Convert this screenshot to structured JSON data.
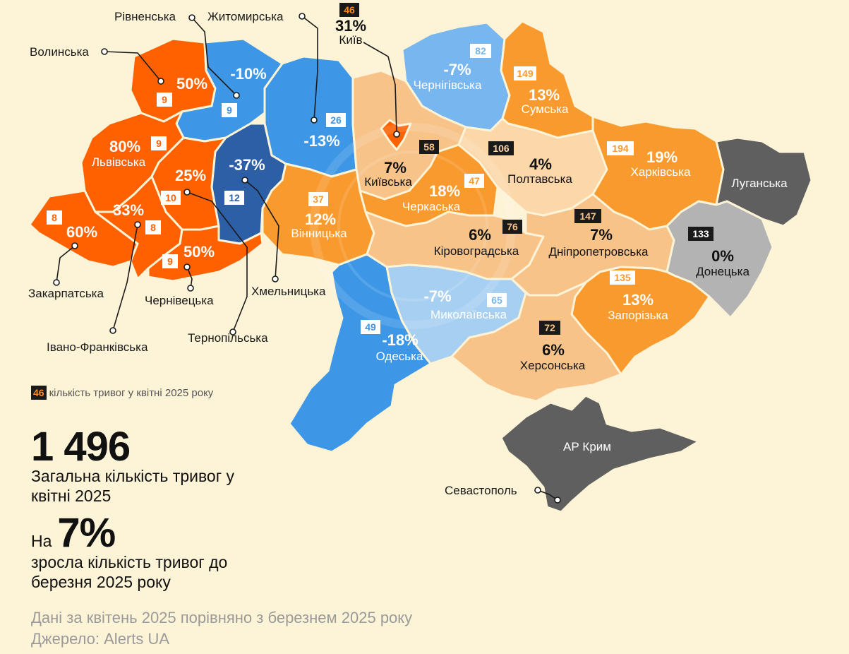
{
  "regions": [
    {
      "id": "volynska",
      "name": "Волинська",
      "change": "50%",
      "count": "9",
      "color": "#ff6000"
    },
    {
      "id": "rivnenska",
      "name": "Рівненська",
      "change": "-10%",
      "count": "9",
      "color": "#3d97e6"
    },
    {
      "id": "zhytomyrska",
      "name": "Житомирська",
      "change": "-13%",
      "count": "26",
      "color": "#3d97e6"
    },
    {
      "id": "kyiv",
      "name": "Київ",
      "change": "31%",
      "count": "46",
      "color": "#ff6000"
    },
    {
      "id": "kyivska",
      "name": "Київська",
      "change": "7%",
      "count": "58",
      "color": "#f8c389"
    },
    {
      "id": "chernihivska",
      "name": "Чернігівська",
      "change": "-7%",
      "count": "82",
      "color": "#78b6f0"
    },
    {
      "id": "sumska",
      "name": "Сумська",
      "change": "13%",
      "count": "149",
      "color": "#f99a2e"
    },
    {
      "id": "lvivska",
      "name": "Львівська",
      "change": "80%",
      "count": "9",
      "color": "#ff6000"
    },
    {
      "id": "ternopilska",
      "name": "Тернопільська",
      "change": "25%",
      "count": "10",
      "color": "#ff6000"
    },
    {
      "id": "khmelnytska",
      "name": "Хмельницька",
      "change": "-37%",
      "count": "12",
      "color": "#2d5fa7"
    },
    {
      "id": "vinnytska",
      "name": "Вінницька",
      "change": "12%",
      "count": "37",
      "color": "#f99a2e"
    },
    {
      "id": "cherkaska",
      "name": "Черкаська",
      "change": "18%",
      "count": "47",
      "color": "#f99a2e"
    },
    {
      "id": "poltavska",
      "name": "Полтавська",
      "change": "4%",
      "count": "106",
      "color": "#fcd7a9"
    },
    {
      "id": "kharkivska",
      "name": "Харківська",
      "change": "19%",
      "count": "194",
      "color": "#f99a2e"
    },
    {
      "id": "luhanska",
      "name": "Луганська",
      "change": "",
      "count": "",
      "color": "#5f5f5f"
    },
    {
      "id": "zakarpatska",
      "name": "Закарпатська",
      "change": "60%",
      "count": "8",
      "color": "#ff6000"
    },
    {
      "id": "ivano_frankivska",
      "name": "Івано-Франківська",
      "change": "33%",
      "count": "8",
      "color": "#ff6000"
    },
    {
      "id": "chernivetska",
      "name": "Чернівецька",
      "change": "50%",
      "count": "9",
      "color": "#ff6000"
    },
    {
      "id": "kirovohradska",
      "name": "Кіровоградська",
      "change": "6%",
      "count": "76",
      "color": "#f8c389"
    },
    {
      "id": "dnipropetrovska",
      "name": "Дніпропетровська",
      "change": "7%",
      "count": "147",
      "color": "#f8c389"
    },
    {
      "id": "donetska",
      "name": "Донецька",
      "change": "0%",
      "count": "133",
      "color": "#b3b3b3"
    },
    {
      "id": "mykolaivska",
      "name": "Миколаївська",
      "change": "-7%",
      "count": "65",
      "color": "#a6cff2"
    },
    {
      "id": "zaporizka",
      "name": "Запорізька",
      "change": "13%",
      "count": "135",
      "color": "#f99a2e"
    },
    {
      "id": "odeska",
      "name": "Одеська",
      "change": "-18%",
      "count": "49",
      "color": "#3d97e6"
    },
    {
      "id": "khersonska",
      "name": "Херсонська",
      "change": "6%",
      "count": "72",
      "color": "#f8c389"
    },
    {
      "id": "krym",
      "name": "АР Крим",
      "change": "",
      "count": "",
      "color": "#5f5f5f"
    },
    {
      "id": "sevastopol",
      "name": "Севастополь",
      "change": "",
      "count": "",
      "color": "#5f5f5f"
    }
  ],
  "legend": {
    "sample": "46",
    "text": "кількість тривог у квітні 2025 року"
  },
  "summary": {
    "total": "1 496",
    "total_desc": "Загальна кількість тривог у квітні 2025",
    "prefix": "На",
    "change": "7%",
    "change_desc": "зросла кількість тривог до березня 2025 року"
  },
  "footer": {
    "line1": "Дані за квітень 2025 порівняно з березнем 2025 року",
    "line2": "Джерело: Alerts UA"
  },
  "colors": {
    "background": "#fdf3d6",
    "dark_badge": "#1a1a1a",
    "badge_accent": "#ff8a1f"
  }
}
